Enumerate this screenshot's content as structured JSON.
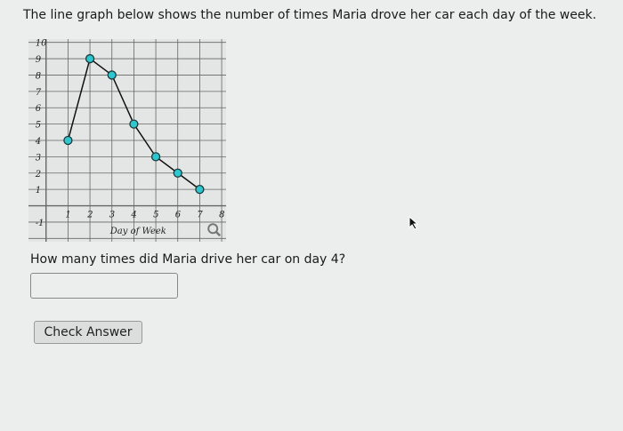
{
  "header": {
    "text": "The line graph below shows the number of times Maria drove her car each day of the week."
  },
  "chart_data": {
    "type": "line",
    "title": "",
    "xlabel": "Day of Week",
    "ylabel": "",
    "x": [
      1,
      2,
      3,
      4,
      5,
      6,
      7
    ],
    "y": [
      4,
      9,
      8,
      5,
      3,
      2,
      1
    ],
    "xlim": [
      -0.8,
      8.2
    ],
    "ylim": [
      -2.2,
      10.2
    ],
    "x_ticks": [
      "1",
      "1",
      "2",
      "3",
      "4",
      "5",
      "6",
      "7",
      "8"
    ],
    "y_ticks": [
      "10",
      "9",
      "8",
      "7",
      "6",
      "5",
      "4",
      "3",
      "2",
      "1",
      "-1"
    ],
    "grid": true,
    "marker_color": "#2ec7cf",
    "line_color": "#111111"
  },
  "chart_tools": {
    "zoom_icon": "magnifier-icon"
  },
  "question": {
    "text": "How many times did Maria drive her car on day 4?"
  },
  "answer": {
    "value": "",
    "placeholder": ""
  },
  "button": {
    "label": "Check Answer"
  }
}
